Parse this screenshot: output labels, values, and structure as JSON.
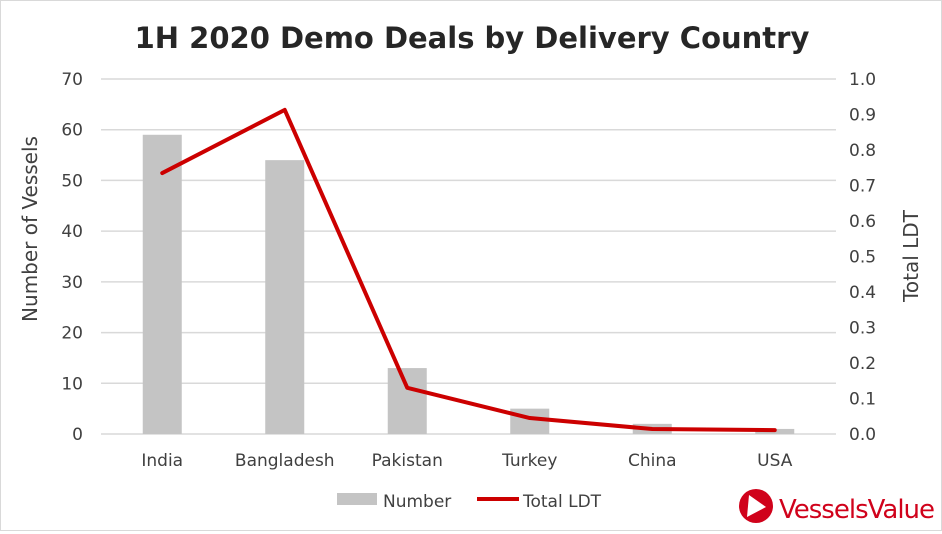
{
  "chart_data": {
    "type": "bar",
    "title": "1H 2020 Demo Deals by Delivery Country",
    "categories": [
      "India",
      "Bangladesh",
      "Pakistan",
      "Turkey",
      "China",
      "USA"
    ],
    "series": [
      {
        "name": "Number",
        "type": "bar",
        "axis": "left",
        "color": "#c4c4c4",
        "values": [
          59,
          54,
          13,
          5,
          2,
          1
        ]
      },
      {
        "name": "Total LDT",
        "type": "line",
        "axis": "right",
        "color": "#cc0000",
        "values": [
          0.735,
          0.913,
          0.13,
          0.045,
          0.014,
          0.011
        ]
      }
    ],
    "ylabel": "Number of Vessels",
    "y2label": "Total LDT",
    "ylim": [
      0,
      70
    ],
    "y2lim": [
      0,
      1.0
    ],
    "yticks": [
      "0",
      "10",
      "20",
      "30",
      "40",
      "50",
      "60",
      "70"
    ],
    "y2ticks": [
      "0.0",
      "0.1",
      "0.2",
      "0.3",
      "0.4",
      "0.5",
      "0.6",
      "0.7",
      "0.8",
      "0.9",
      "1.0"
    ],
    "grid": true,
    "legend_position": "bottom"
  },
  "logo": {
    "text": "VesselsValue",
    "color": "#d0021b"
  }
}
